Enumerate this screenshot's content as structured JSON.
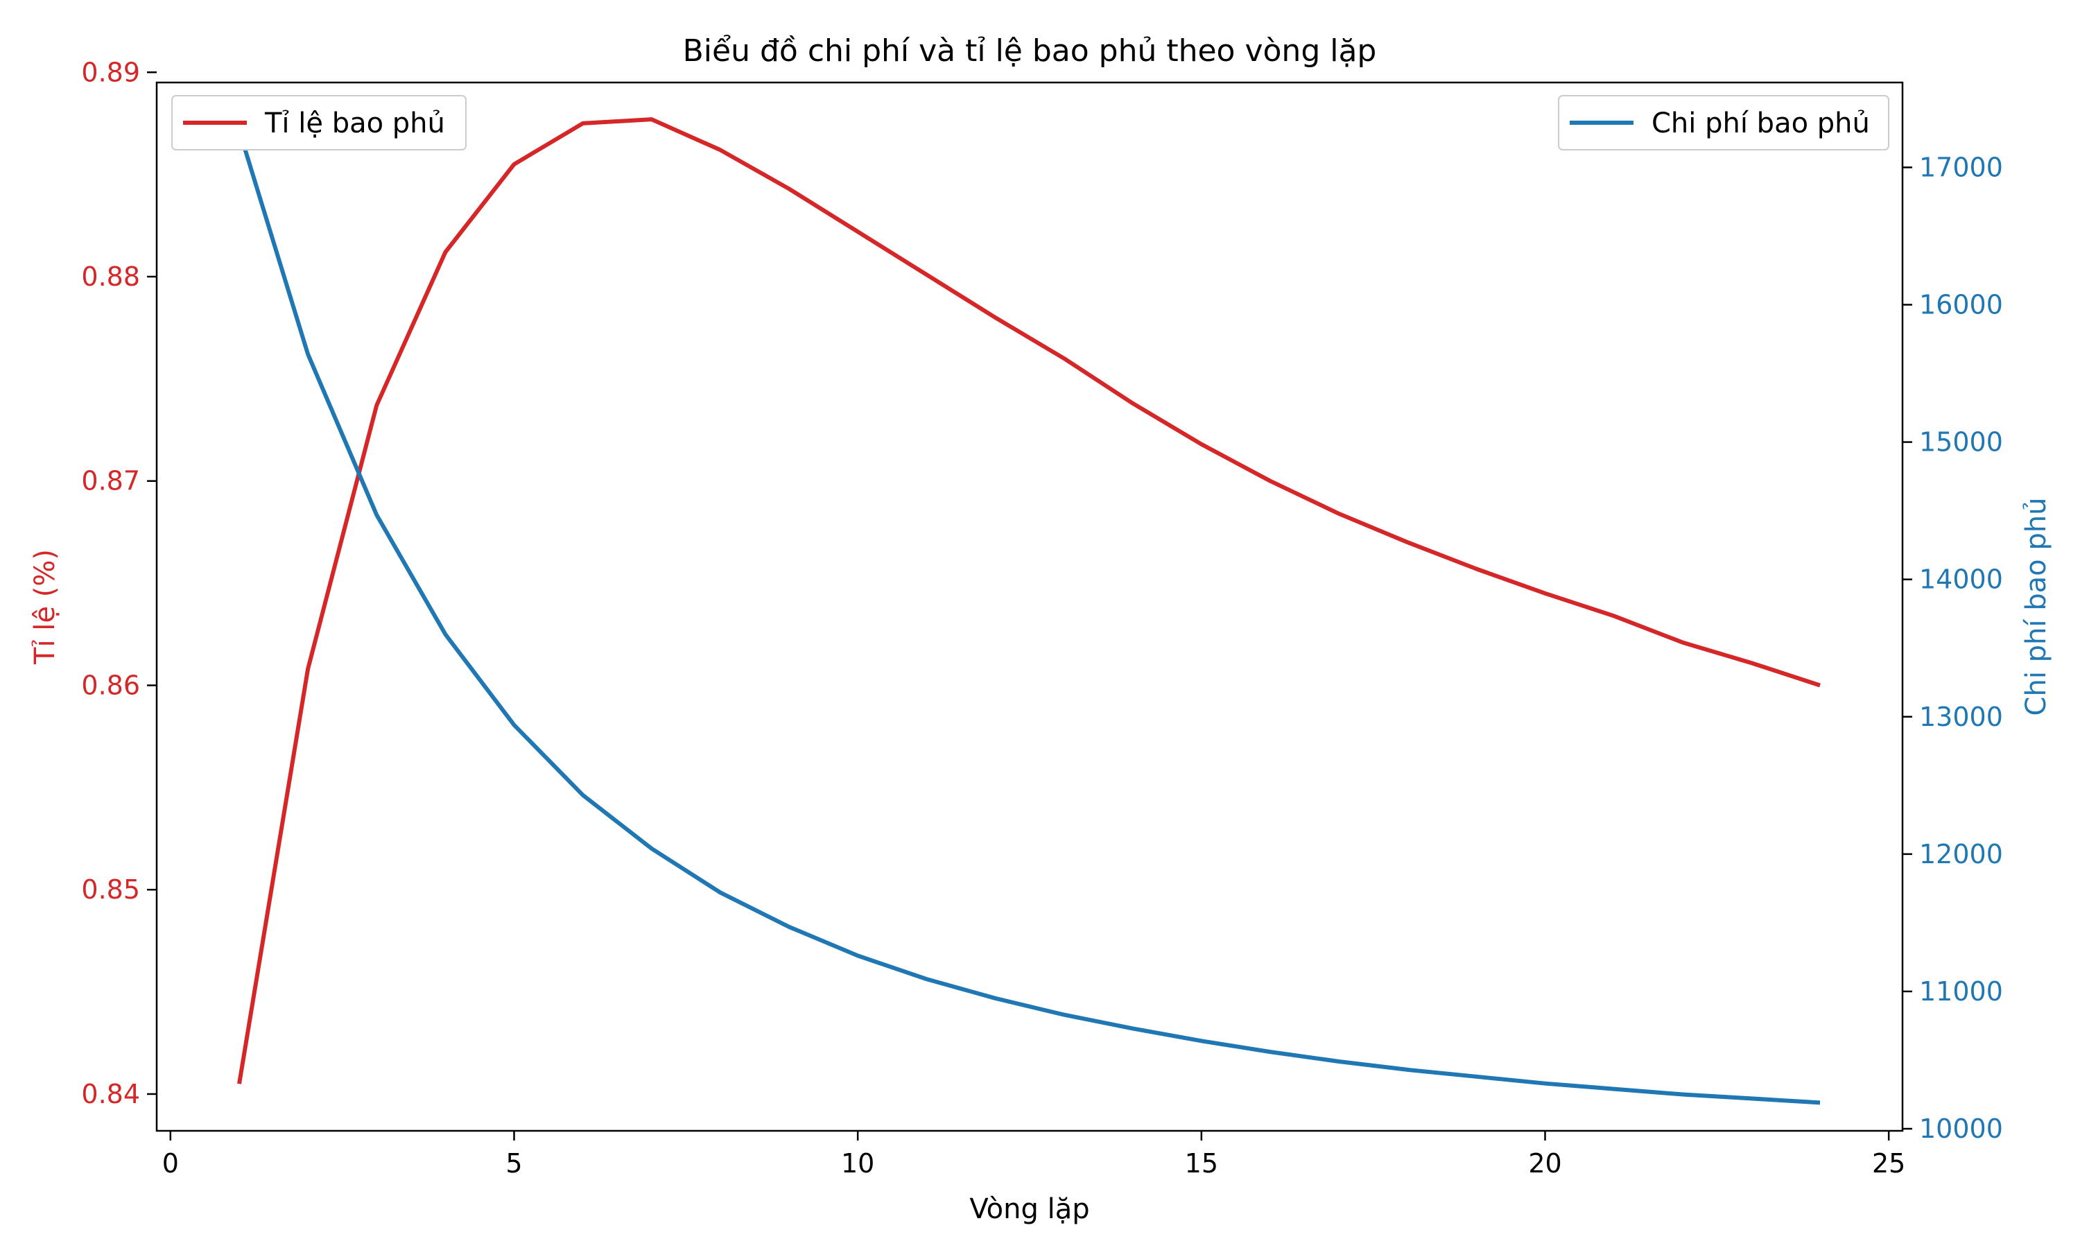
{
  "chart_data": {
    "type": "line",
    "title": "Biểu đồ chi phí và tỉ lệ bao phủ theo vòng lặp",
    "xlabel": "Vòng lặp",
    "ylabel_left": "Tỉ lệ (%)",
    "ylabel_right": "Chi phí bao phủ",
    "xlim": [
      -0.2,
      25.2
    ],
    "ylim_left": [
      0.8382,
      0.8895
    ],
    "ylim_right": [
      9985,
      17618
    ],
    "x_ticks": [
      "0",
      "5",
      "10",
      "15",
      "20",
      "25"
    ],
    "y_left_ticks": [
      "0.84",
      "0.85",
      "0.86",
      "0.87",
      "0.88",
      "0.89"
    ],
    "y_right_ticks": [
      "10000",
      "11000",
      "12000",
      "13000",
      "14000",
      "15000",
      "16000",
      "17000"
    ],
    "grid": false,
    "x": [
      1,
      2,
      3,
      4,
      5,
      6,
      7,
      8,
      9,
      10,
      11,
      12,
      13,
      14,
      15,
      16,
      17,
      18,
      19,
      20,
      21,
      22,
      23,
      24
    ],
    "series": [
      {
        "name": "Tỉ lệ bao phủ",
        "axis": "left",
        "color": "#d62728",
        "legend_position": "upper-left",
        "values": [
          0.8405,
          0.8608,
          0.8737,
          0.8812,
          0.8855,
          0.8875,
          0.8877,
          0.8862,
          0.8843,
          0.8822,
          0.8801,
          0.878,
          0.876,
          0.8738,
          0.8718,
          0.87,
          0.8684,
          0.867,
          0.8657,
          0.8645,
          0.8634,
          0.8621,
          0.8611,
          0.86
        ]
      },
      {
        "name": "Chi phí bao phủ",
        "axis": "right",
        "color": "#1f77b4",
        "legend_position": "upper-right",
        "values": [
          17270,
          15640,
          14470,
          13600,
          12940,
          12430,
          12040,
          11720,
          11470,
          11260,
          11090,
          10950,
          10830,
          10730,
          10640,
          10560,
          10490,
          10430,
          10380,
          10330,
          10290,
          10250,
          10220,
          10190
        ]
      }
    ]
  }
}
